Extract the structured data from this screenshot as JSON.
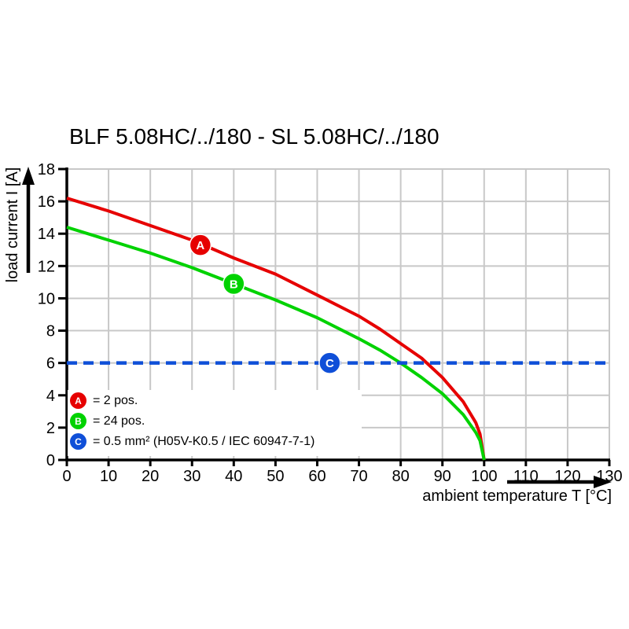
{
  "title": "BLF 5.08HC/../180 - SL 5.08HC/../180",
  "colors": {
    "curve_a_red": "#e60000",
    "curve_b_green": "#00d200",
    "line_c_blue": "#0f4fd8",
    "grid": "#c8c8c8",
    "axis": "#000000",
    "background": "#ffffff"
  },
  "chart_data": {
    "type": "line",
    "title": "BLF 5.08HC/../180 - SL 5.08HC/../180",
    "xlabel": "ambient temperature T [°C]",
    "ylabel": "load current I [A]",
    "xlim": [
      0,
      130
    ],
    "ylim": [
      0,
      18
    ],
    "xticks": [
      0,
      10,
      20,
      30,
      40,
      50,
      60,
      70,
      80,
      90,
      100,
      110,
      120,
      130
    ],
    "yticks": [
      0,
      2,
      4,
      6,
      8,
      10,
      12,
      14,
      16,
      18
    ],
    "grid": true,
    "legend_position": "lower-left",
    "series": [
      {
        "name": "A",
        "label": "= 2 pos.",
        "color": "#e60000",
        "style": "solid",
        "marker": {
          "letter": "A",
          "t": 32,
          "i": 13.3
        },
        "points": [
          [
            0,
            16.2
          ],
          [
            10,
            15.4
          ],
          [
            20,
            14.5
          ],
          [
            30,
            13.6
          ],
          [
            40,
            12.5
          ],
          [
            50,
            11.5
          ],
          [
            60,
            10.2
          ],
          [
            70,
            8.9
          ],
          [
            75,
            8.1
          ],
          [
            80,
            7.2
          ],
          [
            85,
            6.3
          ],
          [
            90,
            5.1
          ],
          [
            95,
            3.6
          ],
          [
            98,
            2.3
          ],
          [
            99,
            1.6
          ],
          [
            100,
            0
          ]
        ]
      },
      {
        "name": "B",
        "label": "= 24 pos.",
        "color": "#00d200",
        "style": "solid",
        "marker": {
          "letter": "B",
          "t": 40,
          "i": 10.9
        },
        "points": [
          [
            0,
            14.4
          ],
          [
            10,
            13.6
          ],
          [
            20,
            12.8
          ],
          [
            30,
            11.9
          ],
          [
            40,
            10.9
          ],
          [
            50,
            9.9
          ],
          [
            60,
            8.8
          ],
          [
            70,
            7.5
          ],
          [
            75,
            6.8
          ],
          [
            80,
            6.0
          ],
          [
            85,
            5.1
          ],
          [
            90,
            4.1
          ],
          [
            95,
            2.8
          ],
          [
            98,
            1.7
          ],
          [
            99,
            1.2
          ],
          [
            100,
            0
          ]
        ]
      },
      {
        "name": "C",
        "label": "= 0.5 mm² (H05V-K0.5 / IEC 60947-7-1)",
        "color": "#0f4fd8",
        "style": "dashed-horizontal",
        "value": 6,
        "marker": {
          "letter": "C",
          "t": 63,
          "i": 6
        },
        "points": [
          [
            0,
            6
          ],
          [
            130,
            6
          ]
        ]
      }
    ]
  }
}
